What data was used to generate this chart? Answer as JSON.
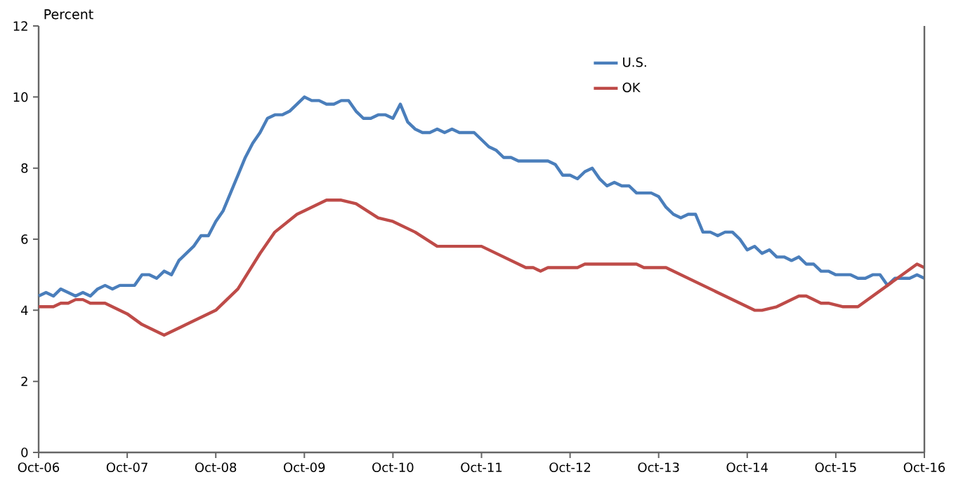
{
  "chart_data": {
    "type": "line",
    "ylabel": "Percent",
    "x": [
      "2006-10",
      "2006-11",
      "2006-12",
      "2007-01",
      "2007-02",
      "2007-03",
      "2007-04",
      "2007-05",
      "2007-06",
      "2007-07",
      "2007-08",
      "2007-09",
      "2007-10",
      "2007-11",
      "2007-12",
      "2008-01",
      "2008-02",
      "2008-03",
      "2008-04",
      "2008-05",
      "2008-06",
      "2008-07",
      "2008-08",
      "2008-09",
      "2008-10",
      "2008-11",
      "2008-12",
      "2009-01",
      "2009-02",
      "2009-03",
      "2009-04",
      "2009-05",
      "2009-06",
      "2009-07",
      "2009-08",
      "2009-09",
      "2009-10",
      "2009-11",
      "2009-12",
      "2010-01",
      "2010-02",
      "2010-03",
      "2010-04",
      "2010-05",
      "2010-06",
      "2010-07",
      "2010-08",
      "2010-09",
      "2010-10",
      "2010-11",
      "2010-12",
      "2011-01",
      "2011-02",
      "2011-03",
      "2011-04",
      "2011-05",
      "2011-06",
      "2011-07",
      "2011-08",
      "2011-09",
      "2011-10",
      "2011-11",
      "2011-12",
      "2012-01",
      "2012-02",
      "2012-03",
      "2012-04",
      "2012-05",
      "2012-06",
      "2012-07",
      "2012-08",
      "2012-09",
      "2012-10",
      "2012-11",
      "2012-12",
      "2013-01",
      "2013-02",
      "2013-03",
      "2013-04",
      "2013-05",
      "2013-06",
      "2013-07",
      "2013-08",
      "2013-09",
      "2013-10",
      "2013-11",
      "2013-12",
      "2014-01",
      "2014-02",
      "2014-03",
      "2014-04",
      "2014-05",
      "2014-06",
      "2014-07",
      "2014-08",
      "2014-09",
      "2014-10",
      "2014-11",
      "2014-12",
      "2015-01",
      "2015-02",
      "2015-03",
      "2015-04",
      "2015-05",
      "2015-06",
      "2015-07",
      "2015-08",
      "2015-09",
      "2015-10",
      "2015-11",
      "2015-12",
      "2016-01",
      "2016-02",
      "2016-03",
      "2016-04",
      "2016-05",
      "2016-06",
      "2016-07",
      "2016-08",
      "2016-09",
      "2016-10"
    ],
    "series": [
      {
        "name": "U.S.",
        "color": "#4a7ebb",
        "values": [
          4.4,
          4.5,
          4.4,
          4.6,
          4.5,
          4.4,
          4.5,
          4.4,
          4.6,
          4.7,
          4.6,
          4.7,
          4.7,
          4.7,
          5.0,
          5.0,
          4.9,
          5.1,
          5.0,
          5.4,
          5.6,
          5.8,
          6.1,
          6.1,
          6.5,
          6.8,
          7.3,
          7.8,
          8.3,
          8.7,
          9.0,
          9.4,
          9.5,
          9.5,
          9.6,
          9.8,
          10.0,
          9.9,
          9.9,
          9.8,
          9.8,
          9.9,
          9.9,
          9.6,
          9.4,
          9.4,
          9.5,
          9.5,
          9.4,
          9.8,
          9.3,
          9.1,
          9.0,
          9.0,
          9.1,
          9.0,
          9.1,
          9.0,
          9.0,
          9.0,
          8.8,
          8.6,
          8.5,
          8.3,
          8.3,
          8.2,
          8.2,
          8.2,
          8.2,
          8.2,
          8.1,
          7.8,
          7.8,
          7.7,
          7.9,
          8.0,
          7.7,
          7.5,
          7.6,
          7.5,
          7.5,
          7.3,
          7.3,
          7.3,
          7.2,
          6.9,
          6.7,
          6.6,
          6.7,
          6.7,
          6.2,
          6.2,
          6.1,
          6.2,
          6.2,
          6.0,
          5.7,
          5.8,
          5.6,
          5.7,
          5.5,
          5.5,
          5.4,
          5.5,
          5.3,
          5.3,
          5.1,
          5.1,
          5.0,
          5.0,
          5.0,
          4.9,
          4.9,
          5.0,
          5.0,
          4.7,
          4.9,
          4.9,
          4.9,
          5.0,
          4.9
        ]
      },
      {
        "name": "OK",
        "color": "#be4b48",
        "x": [
          "2006-10",
          "2006-12",
          "2007-01",
          "2007-02",
          "2007-03",
          "2007-04",
          "2007-05",
          "2007-07",
          "2007-10",
          "2007-12",
          "2008-03",
          "2008-06",
          "2008-10",
          "2009-01",
          "2009-04",
          "2009-06",
          "2009-09",
          "2009-10",
          "2010-01",
          "2010-03",
          "2010-05",
          "2010-08",
          "2010-10",
          "2011-01",
          "2011-04",
          "2011-10",
          "2012-02",
          "2012-04",
          "2012-05",
          "2012-06",
          "2012-07",
          "2012-11",
          "2012-12",
          "2013-07",
          "2013-08",
          "2013-11",
          "2014-11",
          "2014-12",
          "2015-02",
          "2015-05",
          "2015-06",
          "2015-08",
          "2015-09",
          "2015-11",
          "2016-01",
          "2016-05",
          "2016-07",
          "2016-09",
          "2016-10"
        ],
        "values": [
          4.1,
          4.1,
          4.2,
          4.2,
          4.3,
          4.3,
          4.2,
          4.2,
          3.9,
          3.6,
          3.3,
          3.6,
          4.0,
          4.6,
          5.6,
          6.2,
          6.7,
          6.8,
          7.1,
          7.1,
          7.0,
          6.6,
          6.5,
          6.2,
          5.8,
          5.8,
          5.4,
          5.2,
          5.2,
          5.1,
          5.2,
          5.2,
          5.3,
          5.3,
          5.2,
          5.2,
          4.0,
          4.0,
          4.1,
          4.4,
          4.4,
          4.2,
          4.2,
          4.1,
          4.1,
          4.7,
          5.0,
          5.3,
          5.2
        ]
      }
    ],
    "xlim": [
      "2006-10",
      "2016-10"
    ],
    "xticks": [
      {
        "value": "2006-10",
        "label": "Oct-06"
      },
      {
        "value": "2007-10",
        "label": "Oct-07"
      },
      {
        "value": "2008-10",
        "label": "Oct-08"
      },
      {
        "value": "2009-10",
        "label": "Oct-09"
      },
      {
        "value": "2010-10",
        "label": "Oct-10"
      },
      {
        "value": "2011-10",
        "label": "Oct-11"
      },
      {
        "value": "2012-10",
        "label": "Oct-12"
      },
      {
        "value": "2013-10",
        "label": "Oct-13"
      },
      {
        "value": "2014-10",
        "label": "Oct-14"
      },
      {
        "value": "2015-10",
        "label": "Oct-15"
      },
      {
        "value": "2016-10",
        "label": "Oct-16"
      }
    ],
    "ylim": [
      0,
      12
    ],
    "yticks": [
      0,
      2,
      4,
      6,
      8,
      10,
      12
    ],
    "legend": "top",
    "grid": false,
    "marker": "none",
    "line_style": "solid"
  }
}
